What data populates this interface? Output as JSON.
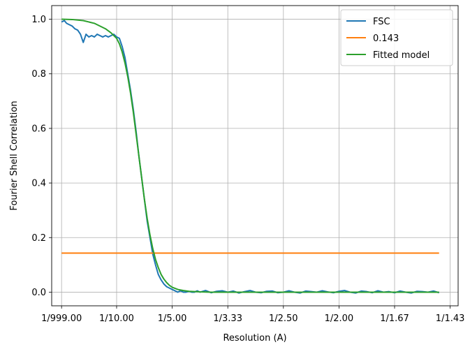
{
  "chart_data": {
    "type": "line",
    "title": "",
    "xlabel": "Resolution (A)",
    "ylabel": "Fourier Shell Correlation",
    "xlim": [
      -0.0168,
      0.7143
    ],
    "ylim": [
      -0.05,
      1.05
    ],
    "grid": true,
    "legend_position": "top-right",
    "x_tick_values": [
      0.001,
      0.1,
      0.2,
      0.3,
      0.4,
      0.5,
      0.6,
      0.7
    ],
    "x_tick_labels": [
      "1/999.00",
      "1/10.00",
      "1/5.00",
      "1/3.33",
      "1/2.50",
      "1/2.00",
      "1/1.67",
      "1/1.43"
    ],
    "y_tick_values": [
      0.0,
      0.2,
      0.4,
      0.6,
      0.8,
      1.0
    ],
    "y_tick_labels": [
      "0.0",
      "0.2",
      "0.4",
      "0.6",
      "0.8",
      "1.0"
    ],
    "series": [
      {
        "name": "FSC",
        "color": "#1f77b4",
        "x": [
          0.001,
          0.006,
          0.01,
          0.015,
          0.02,
          0.025,
          0.03,
          0.035,
          0.04,
          0.045,
          0.05,
          0.055,
          0.06,
          0.065,
          0.07,
          0.075,
          0.08,
          0.085,
          0.09,
          0.095,
          0.1,
          0.105,
          0.11,
          0.115,
          0.12,
          0.125,
          0.13,
          0.135,
          0.14,
          0.145,
          0.15,
          0.155,
          0.16,
          0.165,
          0.17,
          0.175,
          0.18,
          0.185,
          0.19,
          0.195,
          0.2,
          0.205,
          0.21,
          0.215,
          0.22,
          0.225,
          0.23,
          0.235,
          0.24,
          0.245,
          0.25,
          0.26,
          0.27,
          0.28,
          0.29,
          0.3,
          0.31,
          0.32,
          0.33,
          0.34,
          0.35,
          0.36,
          0.37,
          0.38,
          0.39,
          0.4,
          0.41,
          0.42,
          0.43,
          0.44,
          0.45,
          0.46,
          0.47,
          0.48,
          0.49,
          0.5,
          0.51,
          0.52,
          0.53,
          0.54,
          0.55,
          0.56,
          0.57,
          0.58,
          0.59,
          0.6,
          0.61,
          0.62,
          0.63,
          0.64,
          0.65,
          0.66,
          0.67,
          0.68
        ],
        "y": [
          0.99,
          0.995,
          0.985,
          0.98,
          0.975,
          0.965,
          0.96,
          0.945,
          0.915,
          0.945,
          0.935,
          0.94,
          0.935,
          0.945,
          0.94,
          0.935,
          0.94,
          0.935,
          0.94,
          0.945,
          0.935,
          0.93,
          0.9,
          0.86,
          0.8,
          0.74,
          0.67,
          0.59,
          0.5,
          0.42,
          0.34,
          0.26,
          0.2,
          0.14,
          0.1,
          0.065,
          0.045,
          0.03,
          0.02,
          0.015,
          0.01,
          0.005,
          0.0,
          0.005,
          0.0,
          0.0,
          0.003,
          0.0,
          0.0,
          0.005,
          0.0,
          0.006,
          -0.002,
          0.003,
          0.005,
          0.0,
          0.004,
          -0.003,
          0.002,
          0.006,
          0.0,
          -0.002,
          0.003,
          0.004,
          -0.002,
          0.0,
          0.005,
          0.0,
          -0.003,
          0.004,
          0.002,
          0.0,
          0.005,
          0.001,
          -0.002,
          0.003,
          0.006,
          0.0,
          -0.003,
          0.004,
          0.002,
          -0.002,
          0.005,
          0.0,
          0.002,
          -0.002,
          0.004,
          0.0,
          -0.003,
          0.003,
          0.002,
          0.0,
          0.004,
          -0.002
        ]
      },
      {
        "name": "0.143",
        "color": "#ff7f0e",
        "x": [
          0.001,
          0.68
        ],
        "y": [
          0.143,
          0.143
        ]
      },
      {
        "name": "Fitted model",
        "color": "#2ca02c",
        "x": [
          0.001,
          0.02,
          0.04,
          0.06,
          0.08,
          0.09,
          0.1,
          0.105,
          0.11,
          0.115,
          0.12,
          0.125,
          0.13,
          0.135,
          0.14,
          0.145,
          0.15,
          0.155,
          0.16,
          0.165,
          0.17,
          0.175,
          0.18,
          0.185,
          0.19,
          0.195,
          0.2,
          0.21,
          0.22,
          0.23,
          0.24,
          0.25,
          0.27,
          0.3,
          0.35,
          0.4,
          0.5,
          0.6,
          0.68
        ],
        "y": [
          1.0,
          0.999,
          0.995,
          0.985,
          0.965,
          0.95,
          0.93,
          0.91,
          0.88,
          0.84,
          0.79,
          0.73,
          0.66,
          0.58,
          0.5,
          0.42,
          0.34,
          0.27,
          0.21,
          0.16,
          0.12,
          0.09,
          0.065,
          0.048,
          0.035,
          0.025,
          0.018,
          0.01,
          0.006,
          0.003,
          0.002,
          0.001,
          0.0,
          0.0,
          0.0,
          0.0,
          0.0,
          0.0,
          0.0
        ]
      }
    ]
  }
}
